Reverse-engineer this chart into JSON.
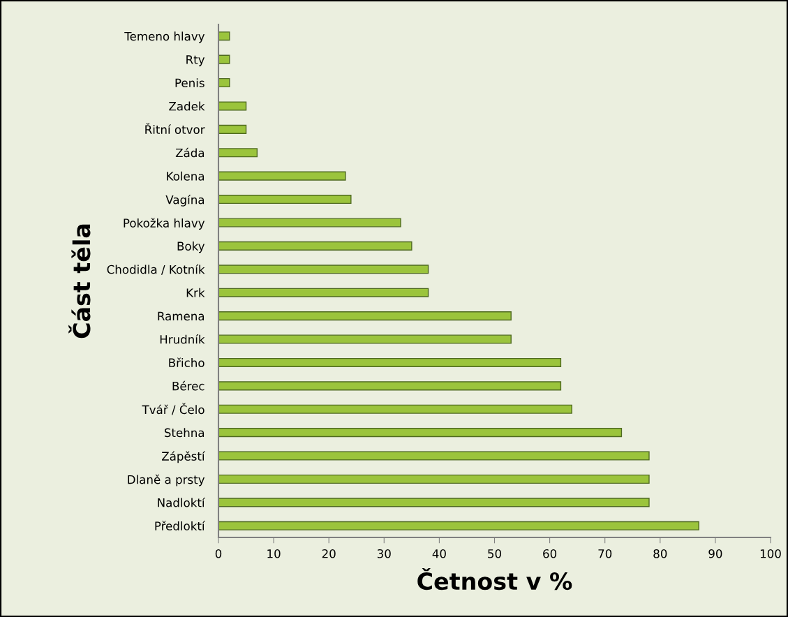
{
  "chart_data": {
    "type": "bar",
    "orientation": "horizontal",
    "xlabel": "Četnost v %",
    "ylabel": "Část těla",
    "categories": [
      "Temeno hlavy",
      "Rty",
      "Penis",
      "Zadek",
      "Řitní otvor",
      "Záda",
      "Kolena",
      "Vagína",
      "Pokožka hlavy",
      "Boky",
      "Chodidla / Kotník",
      "Krk",
      "Ramena",
      "Hrudník",
      "Břicho",
      "Bérec",
      "Tvář / Čelo",
      "Stehna",
      "Zápěstí",
      "Dlaně a prsty",
      "Nadloktí",
      "Předloktí"
    ],
    "values": [
      2,
      2,
      2,
      5,
      5,
      7,
      23,
      24,
      33,
      35,
      38,
      38,
      53,
      53,
      62,
      62,
      64,
      73,
      78,
      78,
      78,
      87
    ],
    "color": "#9bc43c",
    "xlim": [
      0,
      100
    ],
    "xticks": [
      0,
      10,
      20,
      30,
      40,
      50,
      60,
      70,
      80,
      90,
      100
    ],
    "grid": false,
    "legend": false
  }
}
